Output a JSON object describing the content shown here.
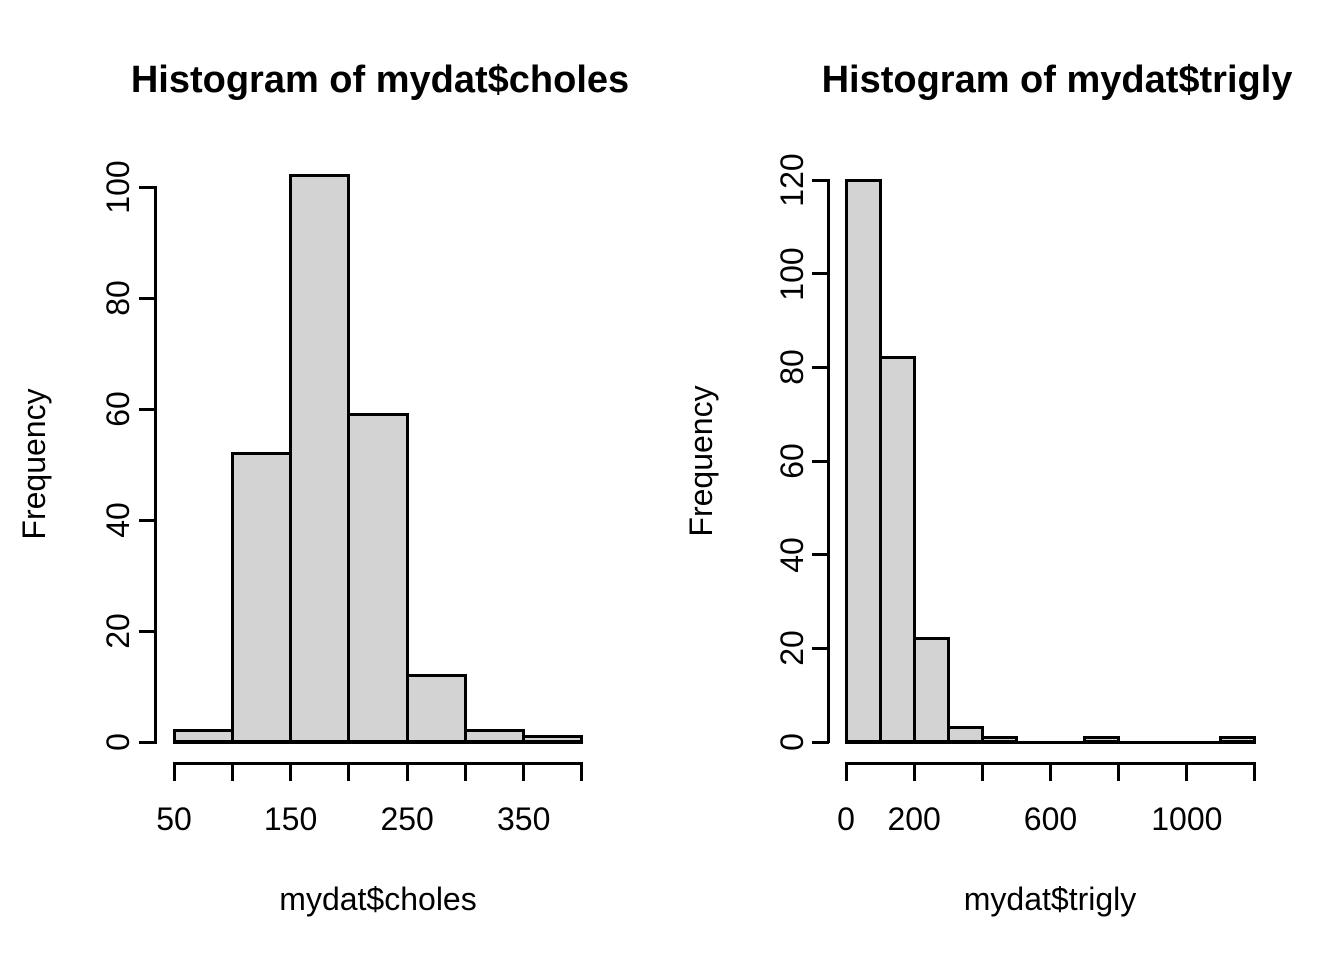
{
  "figure": {
    "background": "#ffffff",
    "bar_fill": "#d3d3d3",
    "bar_border": "#000000",
    "axis_color": "#000000",
    "text_color": "#000000"
  },
  "chart_data": [
    {
      "type": "histogram",
      "title": "Histogram of mydat$choles",
      "xlabel": "mydat$choles",
      "ylabel": "Frequency",
      "breaks": [
        50,
        100,
        150,
        200,
        250,
        300,
        350,
        400
      ],
      "counts": [
        2,
        52,
        102,
        59,
        12,
        2,
        1
      ],
      "xlim": [
        50,
        400
      ],
      "ylim": [
        0,
        100
      ],
      "x_ticks": [
        50,
        100,
        150,
        200,
        250,
        300,
        350,
        400
      ],
      "x_tick_labels": [
        50,
        150,
        250,
        350
      ],
      "y_ticks": [
        0,
        20,
        40,
        60,
        80,
        100
      ],
      "grid": false,
      "legend": false
    },
    {
      "type": "histogram",
      "title": "Histogram of mydat$trigly",
      "xlabel": "mydat$trigly",
      "ylabel": "Frequency",
      "breaks": [
        0,
        100,
        200,
        300,
        400,
        500,
        600,
        700,
        800,
        900,
        1000,
        1100,
        1200
      ],
      "counts": [
        120,
        82,
        22,
        3,
        1,
        0,
        0,
        1,
        0,
        0,
        0,
        1
      ],
      "xlim": [
        0,
        1200
      ],
      "ylim": [
        0,
        120
      ],
      "x_ticks": [
        0,
        200,
        400,
        600,
        800,
        1000,
        1200
      ],
      "x_tick_labels": [
        0,
        200,
        600,
        1000
      ],
      "y_ticks": [
        0,
        20,
        40,
        60,
        80,
        100,
        120
      ],
      "grid": false,
      "legend": false
    }
  ]
}
